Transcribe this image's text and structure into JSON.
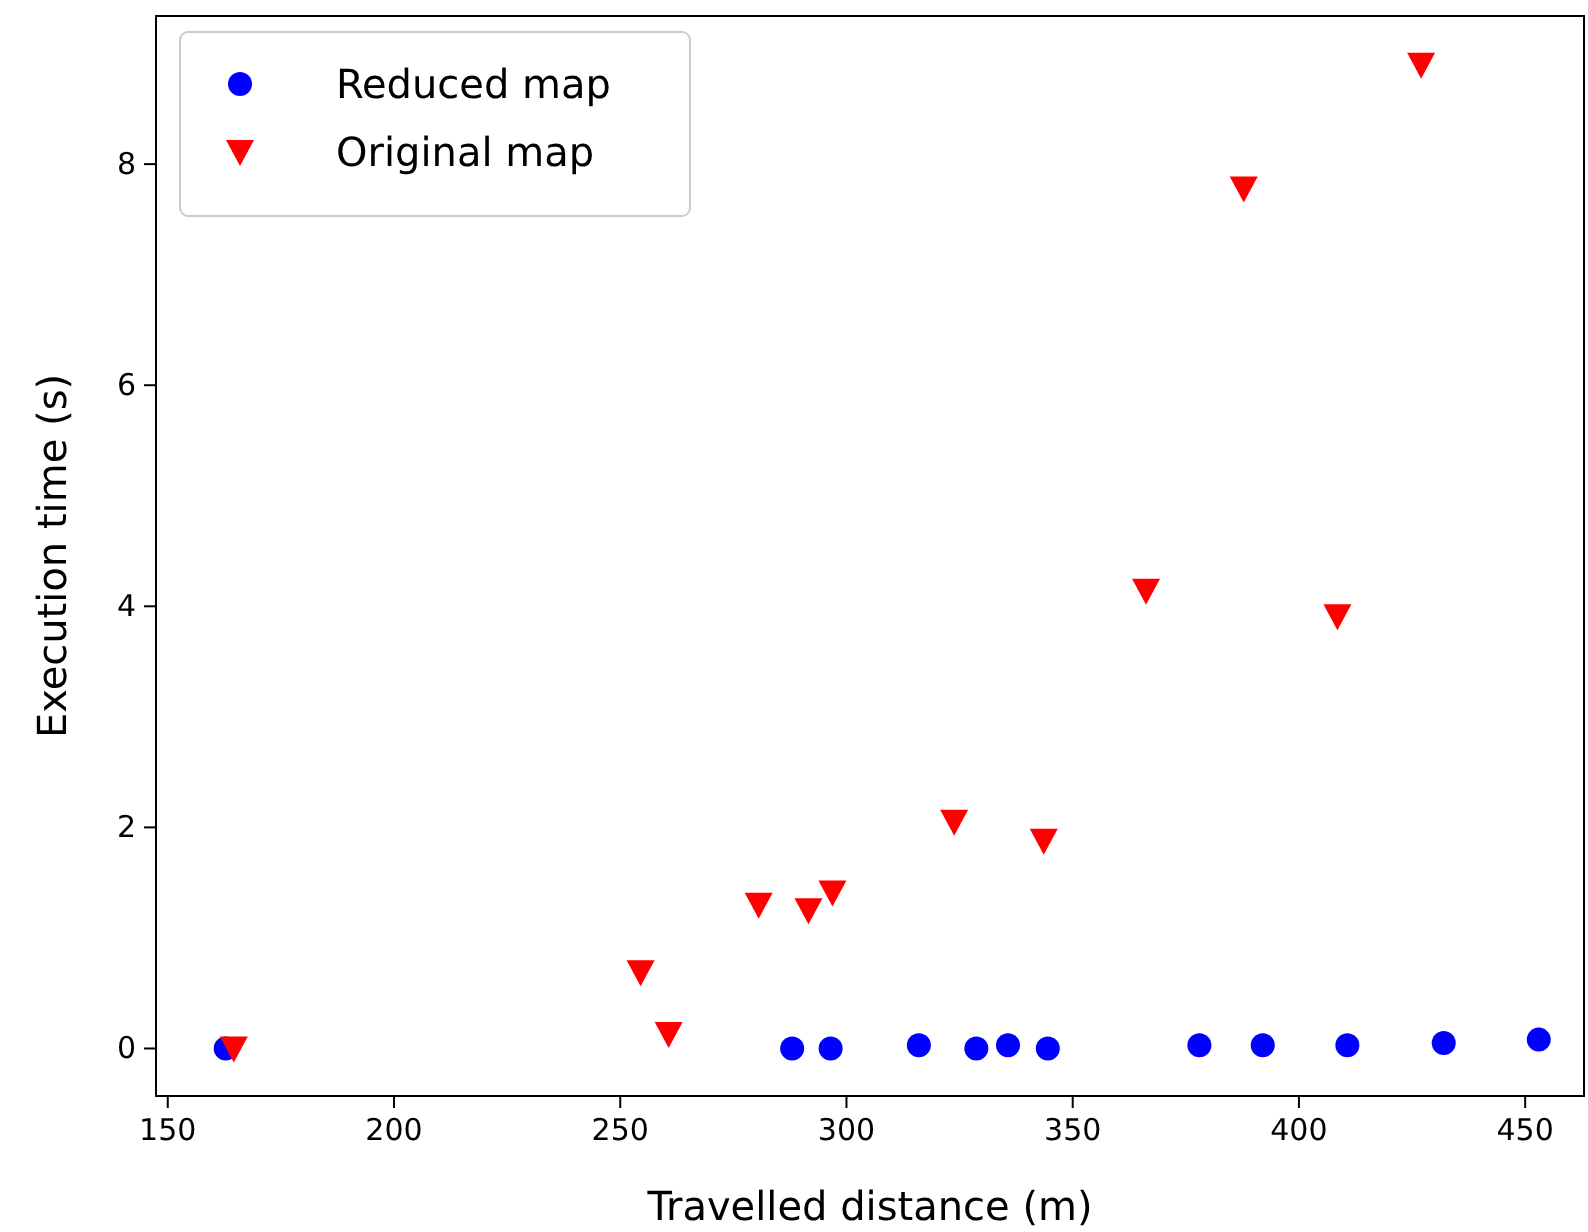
{
  "chart_data": {
    "type": "scatter",
    "xlabel": "Travelled distance (m)",
    "ylabel": "Execution time (s)",
    "xlim": [
      147.4,
      463
    ],
    "ylim": [
      -0.43,
      9.34
    ],
    "xticks": [
      150,
      200,
      250,
      300,
      350,
      400,
      450
    ],
    "yticks": [
      0,
      2,
      4,
      6,
      8
    ],
    "grid": false,
    "legend": "top left",
    "series": [
      {
        "name": "Reduced map",
        "color": "#0000ff",
        "marker": "circle",
        "x": [
          162.8,
          288,
          296.5,
          316,
          328.7,
          335.7,
          344.5,
          378,
          392,
          410.7,
          432,
          453
        ],
        "values": [
          0,
          0,
          0,
          0.03,
          0,
          0.03,
          0,
          0.03,
          0.03,
          0.03,
          0.05,
          0.08
        ]
      },
      {
        "name": "Original map",
        "color": "#ff0000",
        "marker": "triangle",
        "x": [
          164.6,
          254.5,
          260.7,
          280.6,
          291.6,
          296.9,
          323.8,
          343.6,
          366.2,
          387.8,
          408.5,
          427
        ],
        "values": [
          0,
          0.69,
          0.13,
          1.3,
          1.25,
          1.41,
          2.05,
          1.88,
          4.14,
          7.78,
          3.91,
          8.9
        ]
      }
    ]
  }
}
